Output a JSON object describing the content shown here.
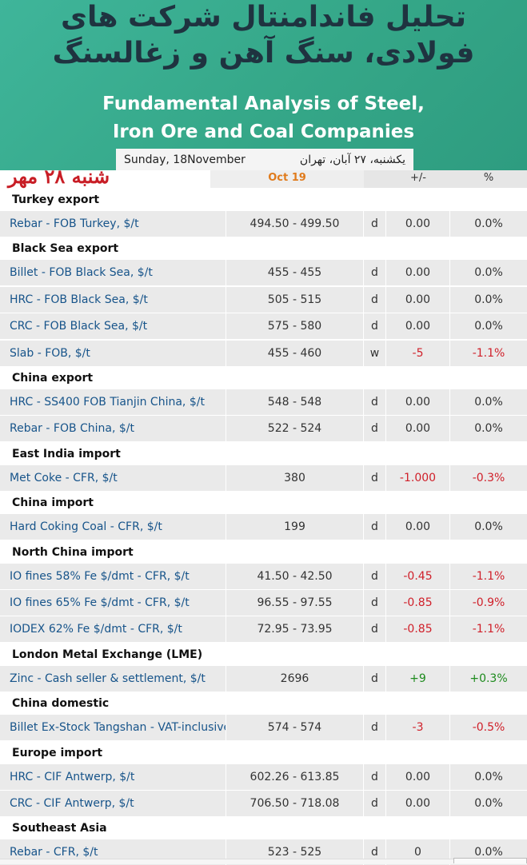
{
  "banner": {
    "title_fa_line1": "تحلیل فاندامنتال شرکت های",
    "title_fa_line2": "فولادی، سنگ آهن و زغالسنگ",
    "title_en_line1": "Fundamental Analysis of Steel,",
    "title_en_line2": "Iron Ore and Coal Companies",
    "date_en": "Sunday, 18November",
    "date_fa": "یکشنبه، ۲۷ آبان، تهران"
  },
  "stamp": "شنبه ۲۸ مهر",
  "header": {
    "date": "Oct 19",
    "change": "+/-",
    "percent": "%"
  },
  "sections": [
    {
      "title": "Turkey export",
      "rows": [
        {
          "name": "Rebar - FOB Turkey, $/t",
          "price": "494.50 - 499.50",
          "unit": "d",
          "change": "0.00",
          "pct": "0.0%",
          "dir": ""
        }
      ]
    },
    {
      "title": "Black Sea export",
      "rows": [
        {
          "name": "Billet - FOB Black Sea, $/t",
          "price": "455 - 455",
          "unit": "d",
          "change": "0.00",
          "pct": "0.0%",
          "dir": ""
        },
        {
          "name": "HRC - FOB Black Sea, $/t",
          "price": "505 - 515",
          "unit": "d",
          "change": "0.00",
          "pct": "0.0%",
          "dir": ""
        },
        {
          "name": "CRC - FOB Black Sea, $/t",
          "price": "575 - 580",
          "unit": "d",
          "change": "0.00",
          "pct": "0.0%",
          "dir": ""
        },
        {
          "name": "Slab - FOB, $/t",
          "price": "455 - 460",
          "unit": "w",
          "change": "-5",
          "pct": "-1.1%",
          "dir": "neg"
        }
      ]
    },
    {
      "title": "China export",
      "rows": [
        {
          "name": "HRC - SS400 FOB Tianjin China, $/t",
          "price": "548 - 548",
          "unit": "d",
          "change": "0.00",
          "pct": "0.0%",
          "dir": ""
        },
        {
          "name": "Rebar - FOB China, $/t",
          "price": "522 - 524",
          "unit": "d",
          "change": "0.00",
          "pct": "0.0%",
          "dir": ""
        }
      ]
    },
    {
      "title": "East India import",
      "rows": [
        {
          "name": "Met Coke - CFR, $/t",
          "price": "380",
          "unit": "d",
          "change": "-1.000",
          "pct": "-0.3%",
          "dir": "neg"
        }
      ]
    },
    {
      "title": "China import",
      "rows": [
        {
          "name": "Hard Coking Coal - CFR, $/t",
          "price": "199",
          "unit": "d",
          "change": "0.00",
          "pct": "0.0%",
          "dir": ""
        }
      ]
    },
    {
      "title": "North China import",
      "rows": [
        {
          "name": "IO fines 58% Fe $/dmt - CFR, $/t",
          "price": "41.50 - 42.50",
          "unit": "d",
          "change": "-0.45",
          "pct": "-1.1%",
          "dir": "neg"
        },
        {
          "name": "IO fines 65% Fe $/dmt - CFR, $/t",
          "price": "96.55 - 97.55",
          "unit": "d",
          "change": "-0.85",
          "pct": "-0.9%",
          "dir": "neg"
        },
        {
          "name": "IODEX 62% Fe $/dmt - CFR, $/t",
          "price": "72.95 - 73.95",
          "unit": "d",
          "change": "-0.85",
          "pct": "-1.1%",
          "dir": "neg"
        }
      ]
    },
    {
      "title": "London Metal Exchange (LME)",
      "rows": [
        {
          "name": "Zinc - Cash seller & settlement, $/t",
          "price": "2696",
          "unit": "d",
          "change": "+9",
          "pct": "+0.3%",
          "dir": "pos"
        }
      ]
    },
    {
      "title": "China domestic",
      "rows": [
        {
          "name": "Billet Ex-Stock Tangshan - VAT-inclusive, $",
          "price": "574 - 574",
          "unit": "d",
          "change": "-3",
          "pct": "-0.5%",
          "dir": "neg"
        }
      ]
    },
    {
      "title": "Europe import",
      "rows": [
        {
          "name": "HRC - CIF Antwerp, $/t",
          "price": "602.26 - 613.85",
          "unit": "d",
          "change": "0.00",
          "pct": "0.0%",
          "dir": ""
        },
        {
          "name": "CRC - CIF Antwerp, $/t",
          "price": "706.50 - 718.08",
          "unit": "d",
          "change": "0.00",
          "pct": "0.0%",
          "dir": ""
        }
      ]
    },
    {
      "title": "Southeast Asia",
      "rows": [
        {
          "name": "Rebar - CFR, $/t",
          "price": "523 - 525",
          "unit": "d",
          "change": "0",
          "pct": "0.0%",
          "dir": ""
        }
      ]
    }
  ]
}
